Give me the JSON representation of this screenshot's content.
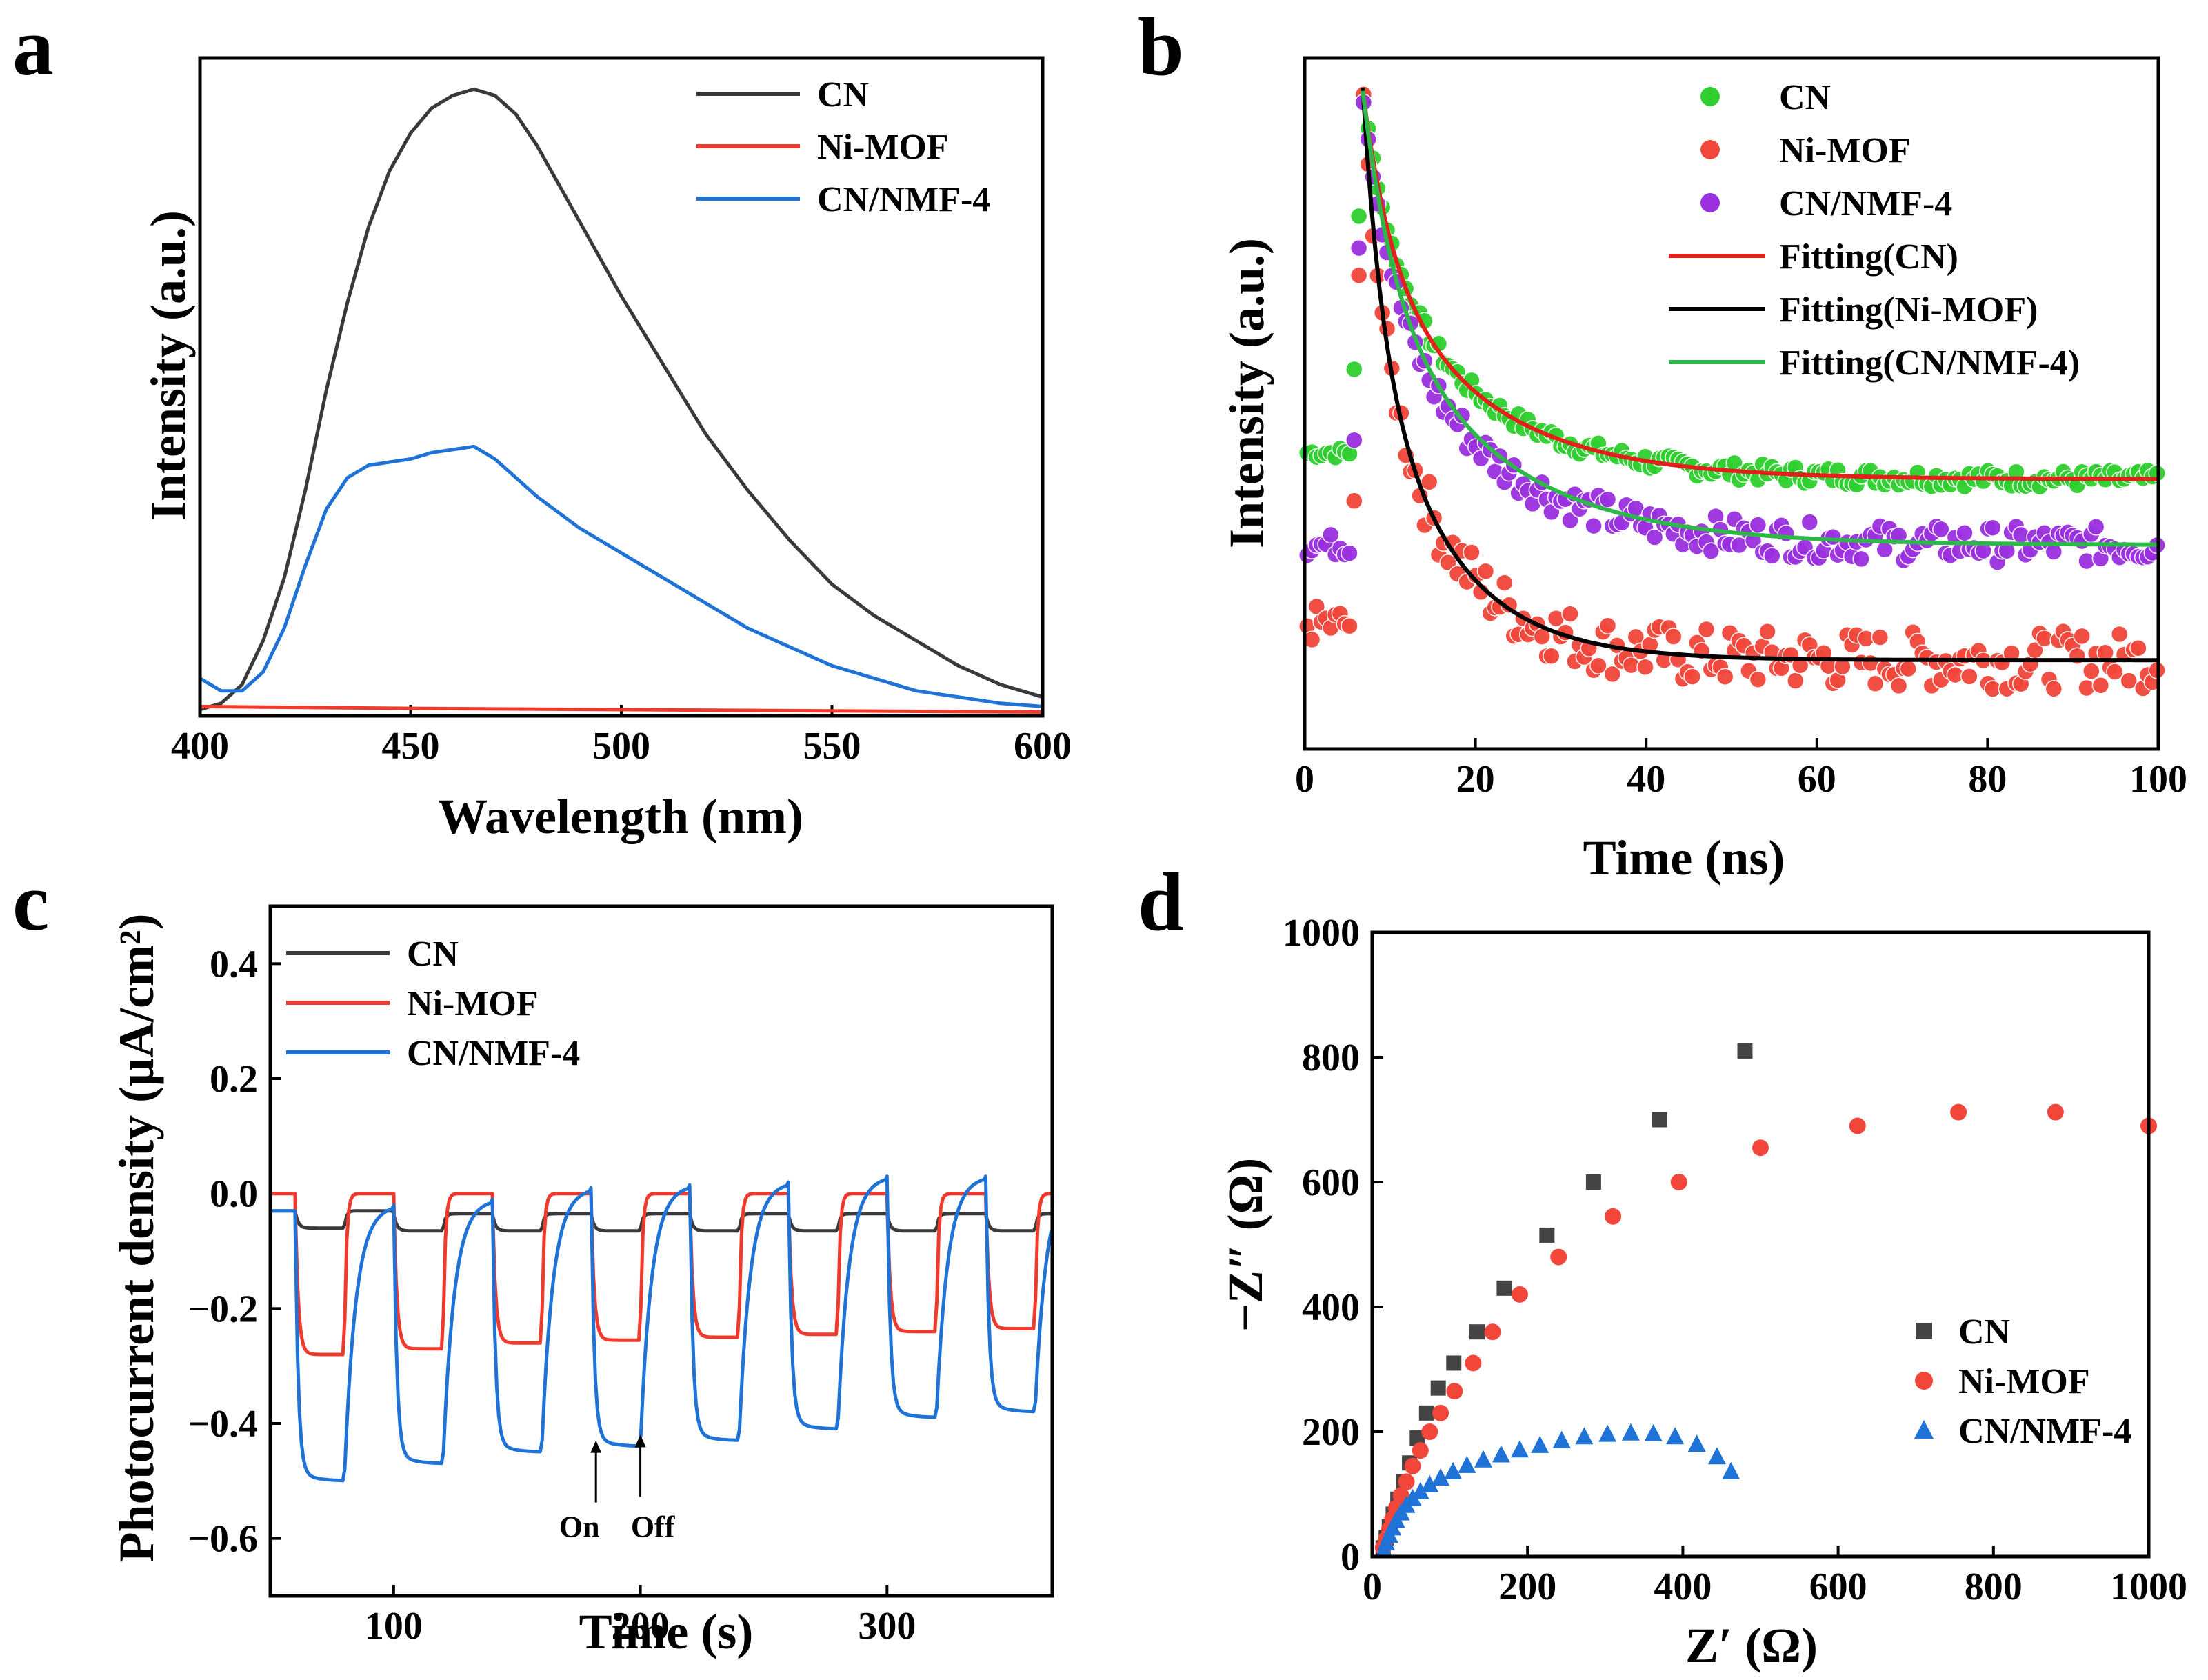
{
  "chart_data": [
    {
      "panel": "a",
      "type": "line",
      "xlabel": "Wavelength (nm)",
      "ylabel": "Intensity (a.u.)",
      "xlim": [
        400,
        600
      ],
      "ylim": [
        0,
        1.05
      ],
      "xticks": [
        400,
        450,
        500,
        550,
        600
      ],
      "legend_position": "top-right",
      "series": [
        {
          "name": "CN",
          "color": "#3a3a3a",
          "x": [
            400,
            405,
            410,
            415,
            420,
            425,
            430,
            435,
            440,
            445,
            450,
            455,
            460,
            465,
            470,
            475,
            480,
            485,
            490,
            495,
            500,
            510,
            520,
            530,
            540,
            550,
            560,
            570,
            580,
            590,
            600
          ],
          "y": [
            0.01,
            0.02,
            0.05,
            0.12,
            0.22,
            0.36,
            0.52,
            0.66,
            0.78,
            0.87,
            0.93,
            0.97,
            0.99,
            1.0,
            0.99,
            0.96,
            0.91,
            0.85,
            0.79,
            0.73,
            0.67,
            0.56,
            0.45,
            0.36,
            0.28,
            0.21,
            0.16,
            0.12,
            0.08,
            0.05,
            0.03
          ]
        },
        {
          "name": "Ni-MOF",
          "color": "#f03a2e",
          "x": [
            400,
            450,
            500,
            550,
            600
          ],
          "y": [
            0.015,
            0.012,
            0.01,
            0.008,
            0.006
          ]
        },
        {
          "name": "CN/NMF-4",
          "color": "#1f73d6",
          "x": [
            400,
            405,
            410,
            415,
            420,
            425,
            430,
            435,
            440,
            445,
            450,
            455,
            460,
            465,
            470,
            475,
            480,
            490,
            500,
            510,
            520,
            530,
            540,
            550,
            560,
            570,
            580,
            590,
            600
          ],
          "y": [
            0.06,
            0.04,
            0.04,
            0.07,
            0.14,
            0.24,
            0.33,
            0.38,
            0.4,
            0.405,
            0.41,
            0.42,
            0.425,
            0.43,
            0.41,
            0.38,
            0.35,
            0.3,
            0.26,
            0.22,
            0.18,
            0.14,
            0.11,
            0.08,
            0.06,
            0.04,
            0.03,
            0.02,
            0.015
          ]
        }
      ]
    },
    {
      "panel": "b",
      "type": "scatter",
      "xlabel": "Time (ns)",
      "ylabel": "Intensity (a.u.)",
      "xlim": [
        0,
        100
      ],
      "ylim": [
        0,
        1.05
      ],
      "xticks": [
        0,
        20,
        40,
        60,
        80,
        100
      ],
      "legend_position": "top-right",
      "series": [
        {
          "name": "CN",
          "kind": "points",
          "color": "#2ecf2e",
          "baseline": 0.41,
          "amplitude": 0.59,
          "tau": 13,
          "scatter": 0.02,
          "rise_start": 0.45,
          "noise": 0.012
        },
        {
          "name": "Ni-MOF",
          "kind": "points",
          "color": "#f2463a",
          "baseline": 0.135,
          "amplitude": 0.87,
          "tau": 9,
          "scatter": 0.04,
          "rise_start": 0.19,
          "noise": 0.04
        },
        {
          "name": "CN/NMF-4",
          "kind": "points",
          "color": "#9a30e0",
          "baseline": 0.31,
          "amplitude": 0.69,
          "tau": 13,
          "scatter": 0.02,
          "rise_start": 0.31,
          "noise": 0.025
        },
        {
          "name": "Fitting(CN)",
          "kind": "line",
          "color": "#e3201b",
          "baseline": 0.41,
          "amplitude": 0.59,
          "tau": 13
        },
        {
          "name": "Fitting(Ni-MOF)",
          "kind": "line",
          "color": "#000000",
          "baseline": 0.135,
          "amplitude": 0.87,
          "tau": 9
        },
        {
          "name": "Fitting(CN/NMF-4)",
          "kind": "line",
          "color": "#2fb84a",
          "baseline": 0.31,
          "amplitude": 0.69,
          "tau": 14
        }
      ]
    },
    {
      "panel": "c",
      "type": "line",
      "xlabel": "Time (s)",
      "ylabel": "Photocurrent density (μA/cm²)",
      "xlim": [
        50,
        367
      ],
      "ylim": [
        -0.7,
        0.5
      ],
      "xticks": [
        100,
        200,
        300
      ],
      "yticks": [
        -0.6,
        -0.4,
        -0.2,
        0.0,
        0.2,
        0.4
      ],
      "ytick_labels": [
        "−0.6",
        "−0.4",
        "−0.2",
        "0.0",
        "0.2",
        "0.4"
      ],
      "light_on_times": [
        60,
        100,
        140,
        180,
        220,
        260,
        300,
        340
      ],
      "light_off_times": [
        80,
        120,
        160,
        200,
        240,
        280,
        320,
        360
      ],
      "annotations": [
        {
          "text": "On",
          "x": 182,
          "y": -0.42
        },
        {
          "text": "Off",
          "x": 200,
          "y": -0.41
        }
      ],
      "legend_position": "top-left",
      "series": [
        {
          "name": "CN",
          "color": "#3a3a3a",
          "on_values": [
            -0.06,
            -0.065,
            -0.065,
            -0.065,
            -0.065,
            -0.065,
            -0.065,
            -0.065
          ],
          "off_values": [
            -0.03,
            -0.035,
            -0.035,
            -0.035,
            -0.035,
            -0.035,
            -0.035,
            -0.035
          ]
        },
        {
          "name": "Ni-MOF",
          "color": "#f03a2e",
          "on_values": [
            -0.28,
            -0.27,
            -0.26,
            -0.255,
            -0.25,
            -0.245,
            -0.24,
            -0.235
          ],
          "off_values": [
            0.0,
            0.0,
            0.0,
            0.0,
            0.0,
            0.0,
            0.0,
            0.0
          ]
        },
        {
          "name": "CN/NMF-4",
          "color": "#1f73d6",
          "on_values": [
            -0.5,
            -0.47,
            -0.45,
            -0.44,
            -0.43,
            -0.41,
            -0.39,
            -0.38
          ],
          "off_values": [
            -0.03,
            -0.02,
            -0.01,
            0.01,
            0.015,
            0.02,
            0.03,
            0.03
          ]
        }
      ]
    },
    {
      "panel": "d",
      "type": "scatter",
      "xlabel": "Z′ (Ω)",
      "ylabel": "−Z″ (Ω)",
      "xlim": [
        0,
        1000
      ],
      "ylim": [
        0,
        1000
      ],
      "xticks": [
        0,
        200,
        400,
        600,
        800,
        1000
      ],
      "yticks": [
        0,
        200,
        400,
        600,
        800,
        1000
      ],
      "legend_position": "bottom-right",
      "series": [
        {
          "name": "CN",
          "marker": "square",
          "color": "#444444",
          "x": [
            14,
            18,
            22,
            27,
            33,
            40,
            48,
            58,
            70,
            85,
            105,
            135,
            170,
            225,
            285,
            370,
            480
          ],
          "y": [
            14,
            30,
            48,
            68,
            92,
            120,
            150,
            190,
            230,
            270,
            310,
            360,
            430,
            515,
            600,
            700,
            810
          ]
        },
        {
          "name": "Ni-MOF",
          "marker": "circle",
          "color": "#f2463a",
          "x": [
            14,
            18,
            22,
            26,
            31,
            37,
            44,
            52,
            62,
            74,
            88,
            106,
            130,
            155,
            190,
            240,
            310,
            395,
            500,
            625,
            755,
            880,
            1000
          ],
          "y": [
            14,
            28,
            44,
            60,
            78,
            98,
            120,
            145,
            170,
            200,
            230,
            265,
            310,
            360,
            420,
            480,
            545,
            600,
            655,
            690,
            712,
            712,
            690
          ]
        },
        {
          "name": "CN/NMF-4",
          "marker": "triangle",
          "color": "#1f73d6",
          "x": [
            15,
            18,
            22,
            26,
            31,
            37,
            44,
            52,
            62,
            74,
            88,
            104,
            122,
            143,
            166,
            190,
            216,
            244,
            273,
            303,
            333,
            362,
            390,
            418,
            444,
            462
          ],
          "y": [
            10,
            22,
            34,
            46,
            58,
            70,
            82,
            93,
            104,
            115,
            126,
            136,
            146,
            155,
            163,
            171,
            178,
            186,
            192,
            196,
            198,
            197,
            192,
            180,
            160,
            136
          ]
        }
      ]
    }
  ]
}
